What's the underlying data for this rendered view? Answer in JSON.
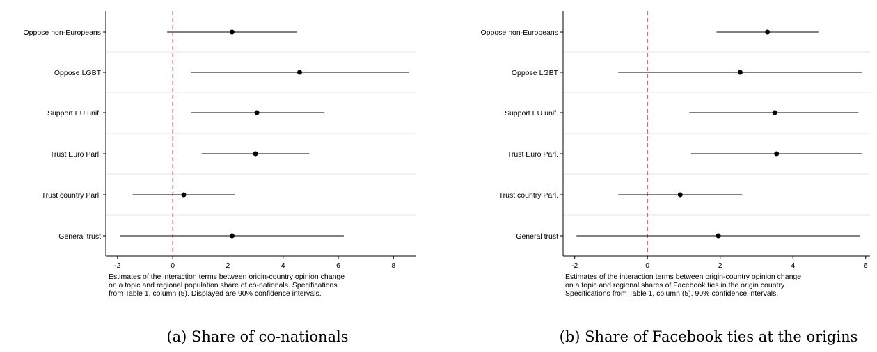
{
  "colors": {
    "reference_line": "#c0504d",
    "grid": "#e6e6e6",
    "marker": "#000000"
  },
  "chart_data": [
    {
      "type": "scatter",
      "style": "coefficient plot with horizontal 90% confidence intervals",
      "categories": [
        "Oppose non-Europeans",
        "Oppose LGBT",
        "Support EU unif.",
        "Trust Euro Parl.",
        "Trust country Parl.",
        "General trust"
      ],
      "estimates": [
        2.15,
        4.6,
        3.05,
        3.0,
        0.4,
        2.15
      ],
      "ci_low": [
        -0.2,
        0.65,
        0.65,
        1.05,
        -1.45,
        -1.9
      ],
      "ci_high": [
        4.5,
        8.55,
        5.5,
        4.95,
        2.25,
        6.2
      ],
      "xlim": [
        -2.4,
        8.8
      ],
      "xticks": [
        -2,
        0,
        2,
        4,
        6,
        8
      ],
      "reference_line_x": 0,
      "note": [
        "Estimates of the interaction terms between origin-country opinion change",
        "on a topic and regional population share of co-nationals. Specifications",
        "from Table 1, column (5). Displayed are 90% confidence intervals."
      ],
      "caption": "(a) Share of co-nationals"
    },
    {
      "type": "scatter",
      "style": "coefficient plot with horizontal 90% confidence intervals",
      "categories": [
        "Oppose non-Europeans",
        "Oppose LGBT",
        "Support EU unif.",
        "Trust Euro Parl.",
        "Trust country Parl.",
        "General trust"
      ],
      "estimates": [
        3.3,
        2.55,
        3.5,
        3.55,
        0.9,
        1.95
      ],
      "ci_low": [
        1.9,
        -0.8,
        1.15,
        1.2,
        -0.8,
        -1.95
      ],
      "ci_high": [
        4.7,
        5.9,
        5.8,
        5.9,
        2.6,
        5.85
      ],
      "xlim": [
        -2.3,
        6.1
      ],
      "xticks": [
        -2,
        0,
        2,
        4,
        6
      ],
      "reference_line_x": 0,
      "note": [
        "Estimates of the interaction terms between origin-country opinion change",
        "on a topic and regional shares of Facebook ties in the origin country.",
        "Specifications from Table 1, column (5). 90% confidence intervals."
      ],
      "caption": "(b) Share of Facebook ties at the origins"
    }
  ]
}
